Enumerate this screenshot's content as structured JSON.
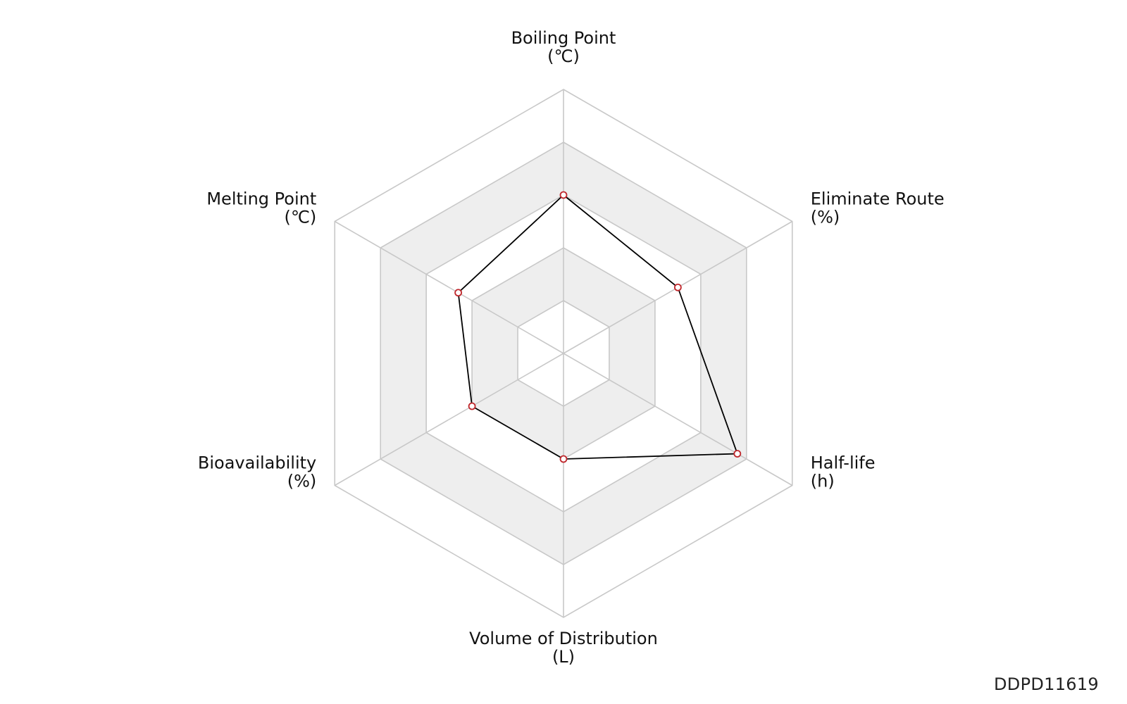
{
  "chart_data": {
    "type": "radar",
    "axes": [
      {
        "name": "Boiling Point",
        "unit": "(℃)"
      },
      {
        "name": "Eliminate Route",
        "unit": "(%)"
      },
      {
        "name": "Half-life",
        "unit": "(h)"
      },
      {
        "name": "Volume of Distribution",
        "unit": "(L)"
      },
      {
        "name": "Bioavailability",
        "unit": "(%)"
      },
      {
        "name": "Melting Point",
        "unit": "(℃)"
      }
    ],
    "scale": [
      0,
      5
    ],
    "rings": 5,
    "alternating_band_colors": [
      "#ffffff",
      "#eeeeee"
    ],
    "series": [
      {
        "values": [
          3.0,
          2.5,
          3.8,
          2.0,
          2.0,
          2.3
        ],
        "line_color": "#000000",
        "marker_color": "#c0282d"
      }
    ],
    "legend": "none",
    "grid": true
  },
  "footer": {
    "id_text": "DDPD11619"
  }
}
